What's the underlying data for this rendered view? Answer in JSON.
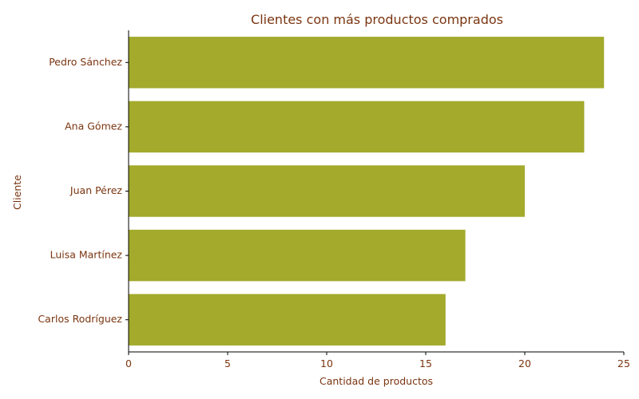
{
  "chart_data": {
    "type": "bar",
    "orientation": "horizontal",
    "title": "Clientes con más productos comprados",
    "xlabel": "Cantidad de productos",
    "ylabel": "Cliente",
    "categories": [
      "Pedro Sánchez",
      "Ana Gómez",
      "Juan Pérez",
      "Luisa Martínez",
      "Carlos Rodríguez"
    ],
    "values": [
      24,
      23,
      20,
      17,
      16
    ],
    "xlim": [
      0,
      25
    ],
    "xticks": [
      0,
      5,
      10,
      15,
      20,
      25
    ],
    "grid": false,
    "colors": {
      "bar": "#a3aa2c",
      "text": "#7a3510",
      "axis": "#000000"
    }
  }
}
